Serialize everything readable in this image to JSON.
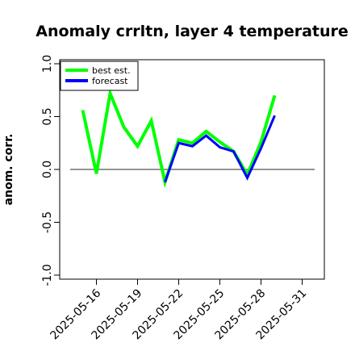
{
  "chart_data": {
    "type": "line",
    "title": "Anomaly crrltn, layer 4 temperature",
    "ylabel": "anom. corr.",
    "xlabel": "",
    "ylim": [
      -1.0,
      1.0
    ],
    "yticks": [
      "-1.0",
      "-0.5",
      "0.0",
      "0.5",
      "1.0"
    ],
    "ytick_values": [
      -1.0,
      -0.5,
      0.0,
      0.5,
      1.0
    ],
    "xlim": [
      "2025-05-14",
      "2025-06-01"
    ],
    "xticks": [
      "2025-05-16",
      "2025-05-19",
      "2025-05-22",
      "2025-05-25",
      "2025-05-28",
      "2025-05-31"
    ],
    "xtick_colors": [
      "#000000",
      "#000000",
      "#228B22",
      "#000000",
      "#000000",
      "#000000"
    ],
    "zero_line": 0.0,
    "legend": {
      "position": "top-left"
    },
    "series": [
      {
        "name": "best est.",
        "color": "#00ff00",
        "x": [
          "2025-05-15",
          "2025-05-16",
          "2025-05-17",
          "2025-05-18",
          "2025-05-19",
          "2025-05-20",
          "2025-05-21",
          "2025-05-22",
          "2025-05-23",
          "2025-05-24",
          "2025-05-25",
          "2025-05-26",
          "2025-05-27",
          "2025-05-28",
          "2025-05-29"
        ],
        "values": [
          0.56,
          -0.04,
          0.72,
          0.4,
          0.22,
          0.46,
          -0.12,
          0.28,
          0.25,
          0.36,
          0.26,
          0.17,
          -0.05,
          0.26,
          0.7
        ]
      },
      {
        "name": "forecast",
        "color": "#0000ff",
        "x": [
          "2025-05-21",
          "2025-05-22",
          "2025-05-23",
          "2025-05-24",
          "2025-05-25",
          "2025-05-26",
          "2025-05-27",
          "2025-05-28",
          "2025-05-29"
        ],
        "values": [
          -0.12,
          0.25,
          0.22,
          0.32,
          0.21,
          0.17,
          -0.08,
          0.2,
          0.51
        ]
      }
    ]
  }
}
